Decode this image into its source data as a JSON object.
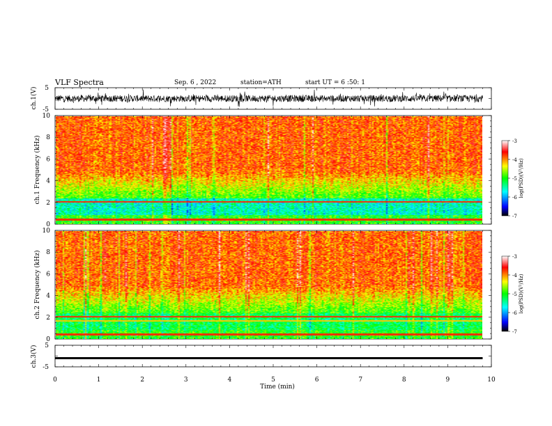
{
  "header": {
    "title": "VLF Spectra",
    "date": "Sep. 6 , 2022",
    "station": "station=ATH",
    "start": "start UT = 6 :50: 1"
  },
  "chart_data": {
    "type": "heatmap",
    "xlabel": "Time (min)",
    "xlim": [
      0,
      10
    ],
    "xticks": [
      "0",
      "1",
      "2",
      "3",
      "4",
      "5",
      "6",
      "7",
      "8",
      "9",
      "10"
    ],
    "data_end_min": 9.8,
    "waveform_ch1": {
      "label": "ch.1(V)",
      "ylim": [
        -5,
        5
      ],
      "yticks": [
        "5",
        "-5"
      ]
    },
    "spectrogram_ch1": {
      "ylabel": "ch.1 Frequency (kHz)",
      "ylim": [
        0,
        10
      ],
      "yticks": [
        "0",
        "2",
        "4",
        "6",
        "8",
        "10"
      ]
    },
    "spectrogram_ch2": {
      "ylabel": "ch.2 Frequency (kHz)",
      "ylim": [
        0,
        10
      ],
      "yticks": [
        "0",
        "2",
        "4",
        "6",
        "8",
        "10"
      ]
    },
    "waveform_ch3": {
      "label": "ch.3(V)",
      "ylim": [
        -5,
        5
      ],
      "yticks": [
        "5",
        "-5"
      ]
    },
    "colorbar": {
      "label": "log(PSD)(V²/Hz)",
      "range": [
        -7,
        -3
      ],
      "ticks": [
        "-3",
        "-4",
        "-5",
        "-6",
        "-7"
      ],
      "colors": [
        "#000000",
        "#0000ff",
        "#00ffff",
        "#00ff00",
        "#ffff00",
        "#ff0000",
        "#ffffff"
      ]
    }
  }
}
